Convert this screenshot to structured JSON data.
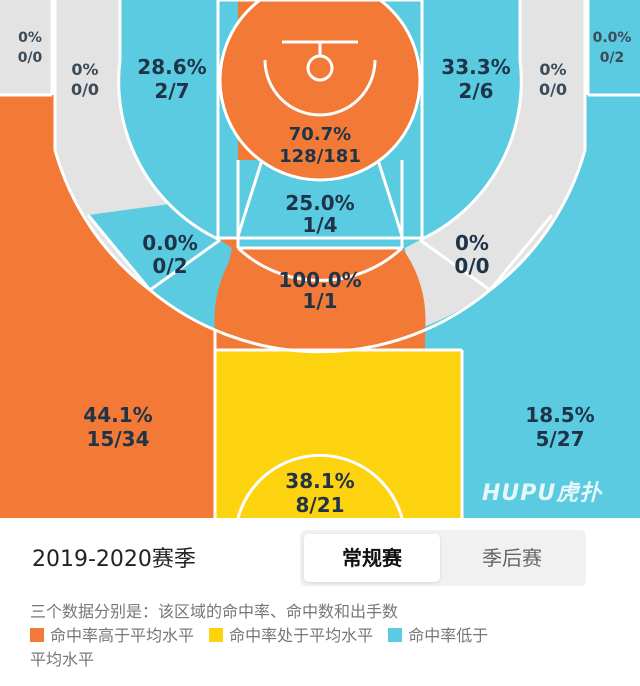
{
  "colors": {
    "above": "#f27936",
    "average": "#fdd20e",
    "below": "#5acbe0",
    "none": "#e3e3e3"
  },
  "zones": {
    "corner_left": {
      "pct": "0%",
      "made": "0/0"
    },
    "corner_right": {
      "pct": "0.0%",
      "made": "0/2"
    },
    "mid_left_outer": {
      "pct": "0%",
      "made": "0/0"
    },
    "mid_left_inner": {
      "pct": "28.6%",
      "made": "2/7"
    },
    "paint_top": {
      "pct": "70.7%",
      "made": "128/181"
    },
    "mid_right_inner": {
      "pct": "33.3%",
      "made": "2/6"
    },
    "mid_right_outer": {
      "pct": "0%",
      "made": "0/0"
    },
    "elbow_left": {
      "pct": "0.0%",
      "made": "0/2"
    },
    "paint_mid": {
      "pct": "25.0%",
      "made": "1/4"
    },
    "elbow_right": {
      "pct": "0%",
      "made": "0/0"
    },
    "free_throw": {
      "pct": "100.0%",
      "made": "1/1"
    },
    "wing_three_left": {
      "pct": "44.1%",
      "made": "15/34"
    },
    "wing_three_right": {
      "pct": "18.5%",
      "made": "5/27"
    },
    "top_three": {
      "pct": "38.1%",
      "made": "8/21"
    }
  },
  "watermark": "HUPU虎扑",
  "season": {
    "title": "2019-2020赛季",
    "tabs": [
      {
        "label": "常规赛",
        "active": true
      },
      {
        "label": "季后赛",
        "active": false
      }
    ]
  },
  "legend": {
    "intro": "三个数据分别是：该区域的命中率、命中数和出手数",
    "above": "命中率高于平均水平",
    "average": "命中率处于平均水平",
    "below_part1": "命中率低于",
    "below_part2": "平均水平"
  }
}
